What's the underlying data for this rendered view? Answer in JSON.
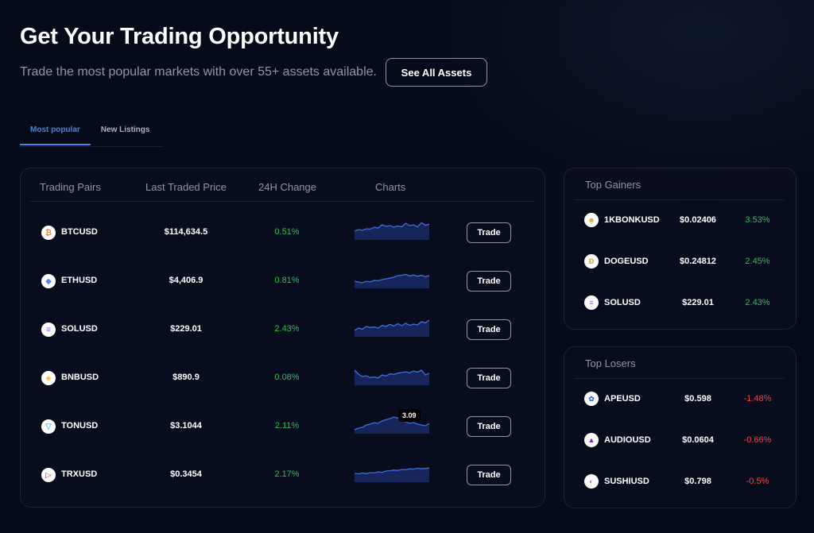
{
  "hero": {
    "title": "Get Your Trading Opportunity",
    "subtitle": "Trade the most popular markets with over 55+ assets available.",
    "see_all_label": "See All Assets"
  },
  "tabs": [
    {
      "label": "Most popular",
      "active": true
    },
    {
      "label": "New Listings",
      "active": false
    }
  ],
  "table": {
    "headers": [
      "Trading Pairs",
      "Last Traded Price",
      "24H Change",
      "Charts"
    ],
    "trade_label": "Trade",
    "rows": [
      {
        "pair": "BTCUSD",
        "price": "$114,634.5",
        "change": "0.51%",
        "icon": "bitcoin-icon",
        "icon_color": "#f7931a",
        "glyph": "₿",
        "spark": [
          0.45,
          0.55,
          0.5,
          0.6,
          0.58,
          0.7,
          0.65,
          0.85,
          0.75,
          0.8,
          0.7,
          0.78,
          0.72,
          0.95,
          0.8,
          0.85,
          0.72,
          0.98,
          0.82,
          0.9
        ]
      },
      {
        "pair": "ETHUSD",
        "price": "$4,406.9",
        "change": "0.81%",
        "icon": "ethereum-icon",
        "icon_color": "#627eea",
        "glyph": "◆",
        "spark": [
          0.35,
          0.3,
          0.25,
          0.35,
          0.3,
          0.4,
          0.38,
          0.45,
          0.5,
          0.55,
          0.6,
          0.7,
          0.72,
          0.78,
          0.68,
          0.74,
          0.66,
          0.72,
          0.64,
          0.7
        ]
      },
      {
        "pair": "SOLUSD",
        "price": "$229.01",
        "change": "2.43%",
        "icon": "solana-icon",
        "icon_color": "#8b5cf6",
        "glyph": "≡",
        "spark": [
          0.3,
          0.45,
          0.38,
          0.55,
          0.48,
          0.52,
          0.45,
          0.62,
          0.55,
          0.68,
          0.58,
          0.72,
          0.6,
          0.75,
          0.62,
          0.7,
          0.65,
          0.85,
          0.78,
          0.95
        ]
      },
      {
        "pair": "BNBUSD",
        "price": "$890.9",
        "change": "0.08%",
        "icon": "bnb-icon",
        "icon_color": "#f3ba2f",
        "glyph": "◈",
        "spark": [
          0.85,
          0.6,
          0.45,
          0.5,
          0.38,
          0.42,
          0.36,
          0.55,
          0.48,
          0.62,
          0.58,
          0.66,
          0.7,
          0.75,
          0.68,
          0.8,
          0.72,
          0.85,
          0.55,
          0.65
        ]
      },
      {
        "pair": "TONUSD",
        "price": "$3.1044",
        "change": "2.11%",
        "icon": "toncoin-icon",
        "icon_color": "#0098ea",
        "glyph": "▽",
        "tooltip": "3.09",
        "spark": [
          0.15,
          0.25,
          0.3,
          0.45,
          0.5,
          0.6,
          0.55,
          0.7,
          0.78,
          0.85,
          0.95,
          0.88,
          0.75,
          0.65,
          0.55,
          0.6,
          0.5,
          0.45,
          0.4,
          0.55
        ]
      },
      {
        "pair": "TRXUSD",
        "price": "$0.3454",
        "change": "2.17%",
        "icon": "tron-icon",
        "icon_color": "#e4302a",
        "glyph": "▷",
        "spark": [
          0.45,
          0.42,
          0.48,
          0.44,
          0.5,
          0.48,
          0.55,
          0.52,
          0.6,
          0.62,
          0.66,
          0.64,
          0.7,
          0.68,
          0.74,
          0.72,
          0.78,
          0.74,
          0.76,
          0.8
        ]
      }
    ]
  },
  "gainers": {
    "title": "Top Gainers",
    "rows": [
      {
        "pair": "1KBONKUSD",
        "price": "$0.02406",
        "change": "3.53%",
        "icon": "bonk-icon",
        "icon_color": "#f4a51c",
        "glyph": "☻"
      },
      {
        "pair": "DOGEUSD",
        "price": "$0.24812",
        "change": "2.45%",
        "icon": "dogecoin-icon",
        "icon_color": "#c2a633",
        "glyph": "Ð"
      },
      {
        "pair": "SOLUSD",
        "price": "$229.01",
        "change": "2.43%",
        "icon": "solana-icon",
        "icon_color": "#8b5cf6",
        "glyph": "≡"
      }
    ]
  },
  "losers": {
    "title": "Top Losers",
    "rows": [
      {
        "pair": "APEUSD",
        "price": "$0.598",
        "change": "-1.48%",
        "icon": "apecoin-icon",
        "icon_color": "#0054f9",
        "glyph": "✿"
      },
      {
        "pair": "AUDIOUSD",
        "price": "$0.0604",
        "change": "-0.66%",
        "icon": "audius-icon",
        "icon_color": "#7e1bcc",
        "glyph": "▲"
      },
      {
        "pair": "SUSHIUSD",
        "price": "$0.798",
        "change": "-0.5%",
        "icon": "sushi-icon",
        "icon_color": "#e05daa",
        "glyph": "◐"
      }
    ]
  },
  "colors": {
    "accent": "#3d86f0",
    "positive": "#2bbf5a",
    "negative": "#e8474f",
    "chart_line": "#3f6fe0",
    "chart_fill": "#17255a"
  }
}
